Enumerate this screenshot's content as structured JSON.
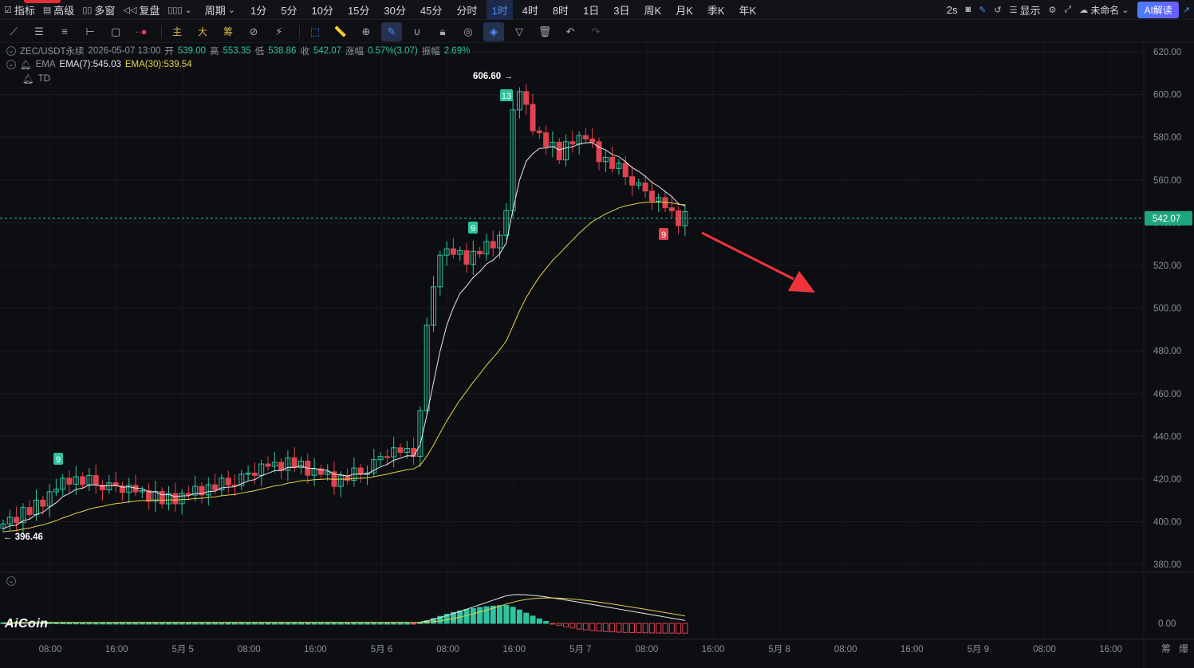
{
  "topbar": {
    "indicators_label": "指标",
    "advanced_label": "高级",
    "multiwindow_label": "多窗",
    "replay_label": "复盘",
    "period_label": "周期",
    "periods": [
      "1分",
      "5分",
      "10分",
      "15分",
      "30分",
      "45分",
      "分时",
      "1时",
      "4时",
      "8时",
      "1日",
      "3日",
      "周K",
      "月K",
      "季K",
      "年K"
    ],
    "active_period": "1时",
    "refresh": "2s",
    "display_label": "显示",
    "layout_name": "未命名",
    "ai_label": "AI解读"
  },
  "toolbar": {
    "main_label": "主",
    "big_label": "大",
    "chip_label": "筹"
  },
  "legend": {
    "symbol": "ZEC/USDT永续",
    "datetime": "2026-05-07 13:00",
    "open_label": "开",
    "open": "539.00",
    "high_label": "高",
    "high": "553.35",
    "low_label": "低",
    "low": "538.86",
    "close_label": "收",
    "close": "542.07",
    "change_label": "涨幅",
    "change": "0.57%(3.07)",
    "amp_label": "振幅",
    "amp": "2.69%",
    "ema_name": "EMA",
    "ema7": "EMA(7):545.03",
    "ema30": "EMA(30):539.54",
    "td_name": "TD"
  },
  "price_axis": [
    "620.00",
    "600.00",
    "580.00",
    "560.00",
    "540.00",
    "520.00",
    "500.00",
    "480.00",
    "460.00",
    "440.00",
    "420.00",
    "400.00",
    "380.00"
  ],
  "current_price": "542.07",
  "high_marker": "606.60",
  "low_marker": "396.46",
  "td_labels": [
    "9",
    "9",
    "13",
    "9"
  ],
  "macd_zero": "0.00",
  "time_axis": [
    "08:00",
    "16:00",
    "5月 5",
    "08:00",
    "16:00",
    "5月 6",
    "08:00",
    "16:00",
    "5月 7",
    "08:00",
    "16:00",
    "5月 8",
    "08:00",
    "16:00",
    "5月 9",
    "08:00",
    "16:00"
  ],
  "bottom_right": [
    "筹",
    "爆"
  ],
  "logo": "AiCoin",
  "colors": {
    "up": "#2ec4a0",
    "down": "#e0434f",
    "ema7": "#e8e8ea",
    "ema30": "#e6d34a",
    "arrow": "#f0343c",
    "active": "#4e8cff"
  }
}
